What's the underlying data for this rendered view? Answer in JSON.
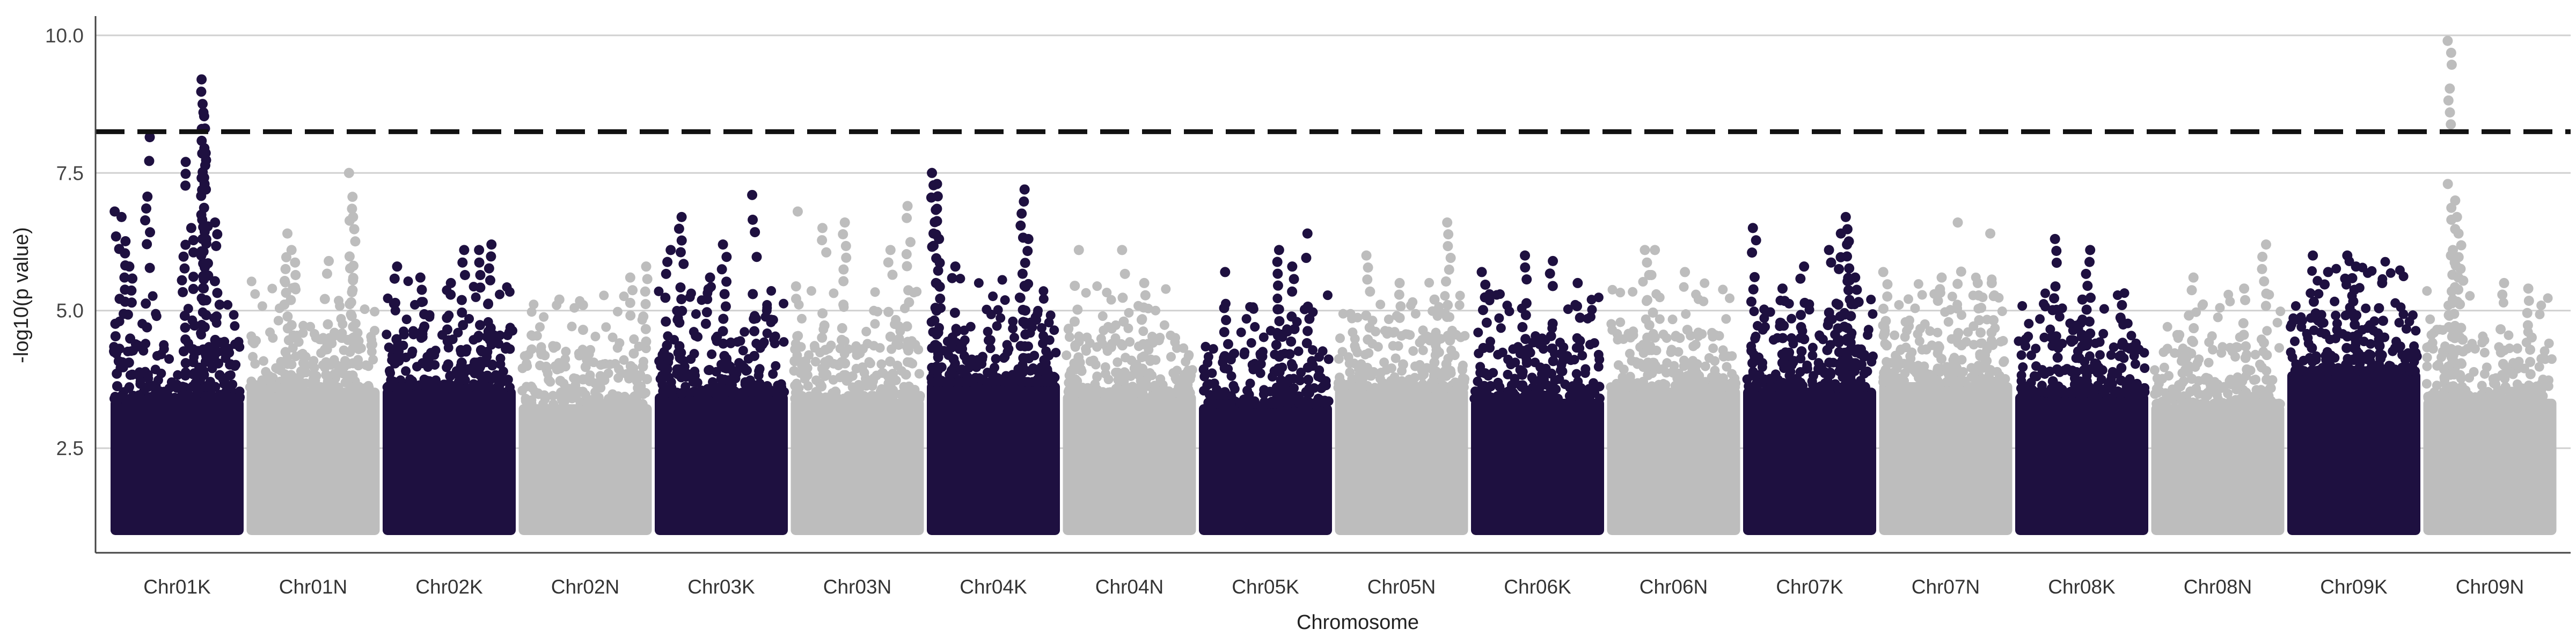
{
  "chart_data": {
    "type": "scatter",
    "title": "",
    "xlabel": "Chromosome",
    "ylabel": "-log10(p value)",
    "ylim": [
      0.6,
      10.35
    ],
    "yticks": [
      2.5,
      5.0,
      7.5,
      10.0
    ],
    "ytick_labels": [
      "2.5",
      "5.0",
      "7.5",
      "10.0"
    ],
    "grid": "horizontal",
    "threshold": 8.25,
    "point_floor": 1.0,
    "colors": {
      "dark": "#1e1040",
      "light": "#bdbdbd",
      "threshold_line": "#111111",
      "grid": "#d0d0d0",
      "axis": "#444444"
    },
    "categories": [
      "Chr01K",
      "Chr01N",
      "Chr02K",
      "Chr02N",
      "Chr03K",
      "Chr03N",
      "Chr04K",
      "Chr04N",
      "Chr05K",
      "Chr05N",
      "Chr06K",
      "Chr06N",
      "Chr07K",
      "Chr07N",
      "Chr08K",
      "Chr08N",
      "Chr09K",
      "Chr09N"
    ],
    "series": [
      {
        "category": "Chr01K",
        "color": "dark",
        "band_top": 3.4,
        "peaks": [
          [
            0.05,
            6.8
          ],
          [
            0.1,
            6.7
          ],
          [
            0.28,
            8.15
          ],
          [
            0.55,
            7.7
          ],
          [
            0.62,
            6.5
          ],
          [
            0.7,
            9.2
          ],
          [
            0.7,
            8.6
          ],
          [
            0.7,
            8.3
          ],
          [
            0.72,
            7.2
          ],
          [
            0.8,
            6.6
          ],
          [
            0.15,
            5.8
          ]
        ]
      },
      {
        "category": "Chr01N",
        "color": "light",
        "band_top": 3.6,
        "peaks": [
          [
            0.3,
            6.4
          ],
          [
            0.35,
            6.1
          ],
          [
            0.78,
            7.5
          ],
          [
            0.8,
            6.7
          ],
          [
            0.6,
            5.9
          ]
        ]
      },
      {
        "category": "Chr02K",
        "color": "dark",
        "band_top": 3.6,
        "peaks": [
          [
            0.1,
            5.8
          ],
          [
            0.3,
            5.6
          ],
          [
            0.6,
            6.1
          ],
          [
            0.72,
            6.1
          ],
          [
            0.8,
            6.2
          ],
          [
            0.5,
            5.5
          ]
        ]
      },
      {
        "category": "Chr02N",
        "color": "light",
        "band_top": 3.3,
        "peaks": [
          [
            0.3,
            5.2
          ],
          [
            0.5,
            5.1
          ],
          [
            0.85,
            5.6
          ],
          [
            0.95,
            5.8
          ]
        ]
      },
      {
        "category": "Chr03K",
        "color": "dark",
        "band_top": 3.5,
        "peaks": [
          [
            0.1,
            6.1
          ],
          [
            0.2,
            6.7
          ],
          [
            0.52,
            6.2
          ],
          [
            0.75,
            7.1
          ],
          [
            0.4,
            5.6
          ]
        ]
      },
      {
        "category": "Chr03N",
        "color": "light",
        "band_top": 3.4,
        "peaks": [
          [
            0.04,
            6.8
          ],
          [
            0.25,
            6.5
          ],
          [
            0.4,
            6.6
          ],
          [
            0.75,
            6.1
          ],
          [
            0.88,
            6.9
          ]
        ]
      },
      {
        "category": "Chr04K",
        "color": "dark",
        "band_top": 3.7,
        "peaks": [
          [
            0.05,
            7.5
          ],
          [
            0.07,
            7.3
          ],
          [
            0.08,
            6.3
          ],
          [
            0.72,
            7.2
          ],
          [
            0.75,
            6.3
          ],
          [
            0.2,
            5.8
          ]
        ]
      },
      {
        "category": "Chr04N",
        "color": "light",
        "band_top": 3.5,
        "peaks": [
          [
            0.1,
            6.1
          ],
          [
            0.45,
            6.1
          ],
          [
            0.6,
            5.5
          ]
        ]
      },
      {
        "category": "Chr05K",
        "color": "dark",
        "band_top": 3.3,
        "peaks": [
          [
            0.2,
            5.7
          ],
          [
            0.6,
            6.1
          ],
          [
            0.7,
            5.8
          ],
          [
            0.82,
            6.4
          ]
        ]
      },
      {
        "category": "Chr05N",
        "color": "light",
        "band_top": 3.6,
        "peaks": [
          [
            0.25,
            6.0
          ],
          [
            0.5,
            5.5
          ],
          [
            0.75,
            5.2
          ],
          [
            0.85,
            6.6
          ]
        ]
      },
      {
        "category": "Chr06K",
        "color": "dark",
        "band_top": 3.4,
        "peaks": [
          [
            0.1,
            5.7
          ],
          [
            0.4,
            6.0
          ],
          [
            0.6,
            5.9
          ],
          [
            0.8,
            5.5
          ]
        ]
      },
      {
        "category": "Chr06N",
        "color": "light",
        "band_top": 3.6,
        "peaks": [
          [
            0.3,
            6.1
          ],
          [
            0.35,
            6.1
          ],
          [
            0.6,
            5.7
          ]
        ]
      },
      {
        "category": "Chr07K",
        "color": "dark",
        "band_top": 3.6,
        "peaks": [
          [
            0.08,
            6.5
          ],
          [
            0.3,
            5.4
          ],
          [
            0.45,
            5.8
          ],
          [
            0.65,
            6.1
          ],
          [
            0.72,
            6.4
          ],
          [
            0.78,
            6.7
          ],
          [
            0.8,
            6.2
          ],
          [
            0.85,
            5.6
          ]
        ]
      },
      {
        "category": "Chr07N",
        "color": "light",
        "band_top": 3.7,
        "peaks": [
          [
            0.05,
            5.7
          ],
          [
            0.45,
            5.6
          ],
          [
            0.6,
            6.6
          ],
          [
            0.75,
            5.5
          ],
          [
            0.85,
            6.4
          ]
        ]
      },
      {
        "category": "Chr08K",
        "color": "dark",
        "band_top": 3.5,
        "peaks": [
          [
            0.3,
            6.3
          ],
          [
            0.55,
            6.1
          ],
          [
            0.5,
            5.2
          ],
          [
            0.8,
            5.1
          ]
        ]
      },
      {
        "category": "Chr08N",
        "color": "light",
        "band_top": 3.3,
        "peaks": [
          [
            0.3,
            5.6
          ],
          [
            0.7,
            5.4
          ],
          [
            0.85,
            6.2
          ]
        ]
      },
      {
        "category": "Chr09K",
        "color": "dark",
        "band_top": 3.9,
        "peaks": [
          [
            0.2,
            6.0
          ],
          [
            0.3,
            5.7
          ],
          [
            0.45,
            6.0
          ],
          [
            0.5,
            5.8
          ],
          [
            0.7,
            5.5
          ]
        ]
      },
      {
        "category": "Chr09N",
        "color": "light",
        "band_top": 3.4,
        "peaks": [
          [
            0.2,
            9.9
          ],
          [
            0.22,
            7.0
          ],
          [
            0.25,
            6.7
          ],
          [
            0.28,
            6.4
          ],
          [
            0.6,
            5.5
          ],
          [
            0.8,
            5.4
          ]
        ]
      }
    ]
  }
}
